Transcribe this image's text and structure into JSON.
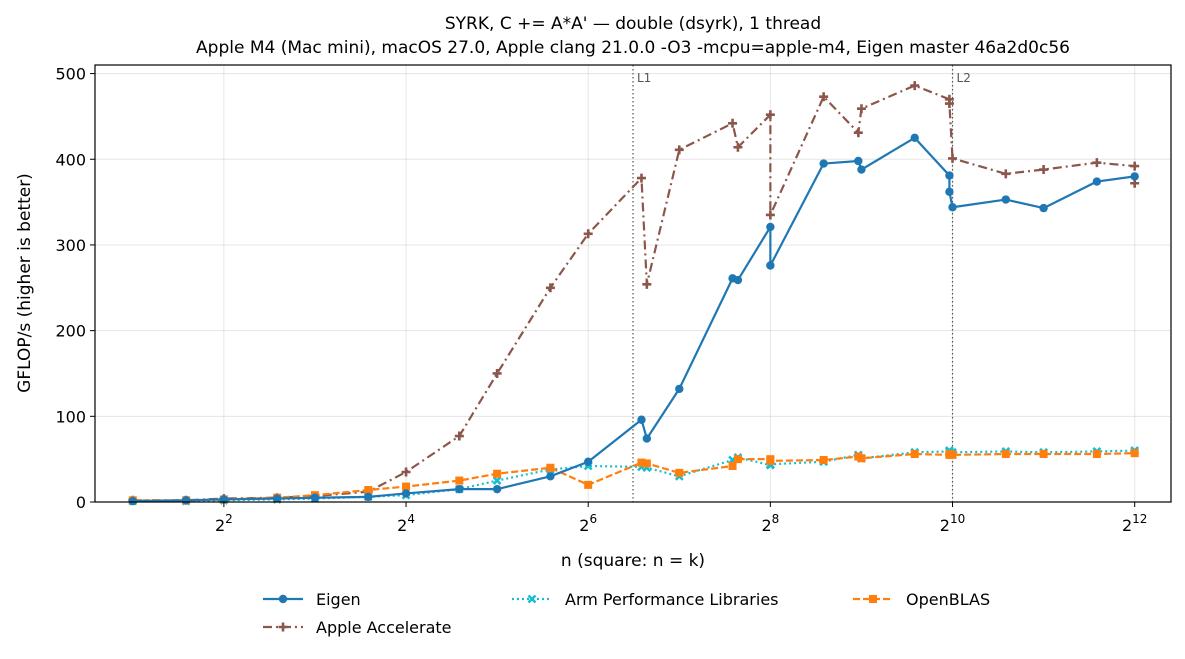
{
  "chart_data": {
    "type": "line",
    "title": "SYRK, C += A*A' — double (dsyrk), 1 thread",
    "subtitle": "Apple M4 (Mac mini), macOS 27.0, Apple clang 21.0.0 -O3 -mcpu=apple-m4, Eigen master 46a2d0c56",
    "xlabel": "n (square: n = k)",
    "ylabel": "GFLOP/s (higher is better)",
    "x_scale": "log2",
    "xlim": [
      1.5,
      5400
    ],
    "ylim": [
      0,
      510
    ],
    "x_ticks": [
      {
        "value": 4,
        "base": "2",
        "exp": "2"
      },
      {
        "value": 16,
        "base": "2",
        "exp": "4"
      },
      {
        "value": 64,
        "base": "2",
        "exp": "6"
      },
      {
        "value": 256,
        "base": "2",
        "exp": "8"
      },
      {
        "value": 1024,
        "base": "2",
        "exp": "10"
      },
      {
        "value": 4096,
        "base": "2",
        "exp": "12"
      }
    ],
    "y_ticks": [
      {
        "value": 0,
        "label": "0"
      },
      {
        "value": 100,
        "label": "100"
      },
      {
        "value": 200,
        "label": "200"
      },
      {
        "value": 300,
        "label": "300"
      },
      {
        "value": 400,
        "label": "400"
      },
      {
        "value": 500,
        "label": "500"
      }
    ],
    "grid": true,
    "legend_position": "bottom",
    "reference_lines": [
      {
        "label": "L1",
        "x": 90
      },
      {
        "label": "L2",
        "x": 1024
      }
    ],
    "series": [
      {
        "name": "Eigen",
        "color": "#1f77b4",
        "marker": "circle",
        "dash": "solid",
        "x": [
          2,
          3,
          4,
          6,
          8,
          12,
          16,
          24,
          32,
          48,
          64,
          96,
          100,
          128,
          192,
          200,
          256,
          256,
          384,
          500,
          512,
          768,
          1000,
          1000,
          1024,
          1536,
          2048,
          3072,
          4096
        ],
        "y": [
          1,
          2,
          3,
          4,
          5,
          6,
          10,
          15,
          15,
          30,
          47,
          96,
          74,
          132,
          261,
          259,
          321,
          276,
          395,
          398,
          388,
          425,
          381,
          362,
          344,
          353,
          343,
          374,
          380
        ]
      },
      {
        "name": "Apple Accelerate",
        "color": "#8c564b",
        "marker": "plus",
        "dash": "dashdot",
        "x": [
          2,
          3,
          4,
          6,
          8,
          12,
          16,
          24,
          32,
          48,
          64,
          96,
          100,
          128,
          192,
          200,
          256,
          256,
          384,
          500,
          512,
          768,
          1000,
          1000,
          1024,
          1536,
          2048,
          3072,
          4096,
          4096
        ],
        "y": [
          2,
          2,
          4,
          5,
          7,
          12,
          35,
          77,
          150,
          250,
          313,
          378,
          254,
          411,
          442,
          414,
          452,
          335,
          473,
          431,
          459,
          486,
          470,
          465,
          401,
          383,
          388,
          396,
          392,
          372
        ]
      },
      {
        "name": "Arm Performance Libraries",
        "color": "#17becf",
        "marker": "x",
        "dash": "dotted",
        "x": [
          2,
          3,
          4,
          6,
          8,
          12,
          16,
          24,
          32,
          48,
          64,
          96,
          100,
          128,
          192,
          200,
          256,
          256,
          384,
          500,
          512,
          768,
          1000,
          1000,
          1024,
          1536,
          2048,
          3072,
          4096
        ],
        "y": [
          1,
          1,
          2,
          3,
          4,
          6,
          8,
          15,
          25,
          38,
          42,
          41,
          40,
          30,
          49,
          52,
          43,
          44,
          47,
          55,
          51,
          58,
          59,
          60,
          58,
          59,
          58,
          59,
          60
        ]
      },
      {
        "name": "OpenBLAS",
        "color": "#ff7f0e",
        "marker": "square",
        "dash": "dashed",
        "x": [
          2,
          3,
          4,
          6,
          8,
          12,
          16,
          24,
          32,
          48,
          64,
          96,
          100,
          128,
          192,
          200,
          256,
          256,
          384,
          500,
          512,
          768,
          1000,
          1000,
          1024,
          1536,
          2048,
          3072,
          4096
        ],
        "y": [
          2,
          2,
          3,
          5,
          8,
          14,
          18,
          25,
          33,
          40,
          20,
          46,
          45,
          34,
          42,
          50,
          50,
          48,
          49,
          53,
          51,
          56,
          55,
          56,
          55,
          56,
          56,
          56,
          57
        ]
      }
    ]
  }
}
